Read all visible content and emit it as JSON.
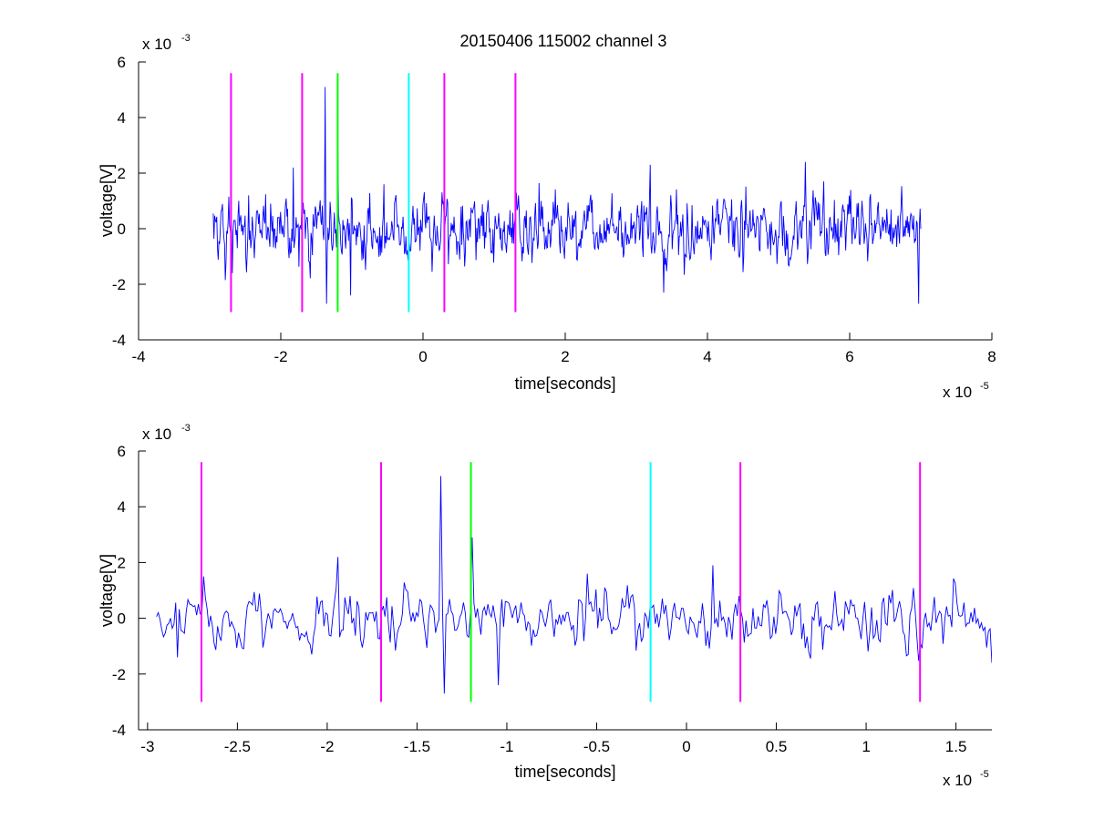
{
  "chart_data": [
    {
      "type": "line",
      "title": "20150406 115002 channel 3",
      "xlabel": "time[seconds]",
      "ylabel": "voltage[V]",
      "xlim": [
        -4e-05,
        8e-05
      ],
      "ylim": [
        -0.004,
        0.006
      ],
      "x_scale_text": "x 10",
      "x_scale_exp": "-5",
      "y_scale_text": "x 10",
      "y_scale_exp": "-3",
      "x_ticks": [
        -4e-05,
        -2e-05,
        0,
        2e-05,
        4e-05,
        6e-05,
        8e-05
      ],
      "x_tick_labels": [
        "-4",
        "-2",
        "0",
        "2",
        "4",
        "6",
        "8"
      ],
      "y_ticks": [
        -0.004,
        -0.002,
        0,
        0.002,
        0.004,
        0.006
      ],
      "y_tick_labels": [
        "-4",
        "-2",
        "0",
        "2",
        "4",
        "6"
      ],
      "grid": false,
      "series": [
        {
          "color": "#0000ff",
          "x_start": -2.95e-05,
          "x_end": 7e-05,
          "points": 1000,
          "baseline_sd": 0.0007,
          "spikes": [
            {
              "x": -2.68e-05,
              "y": -0.0016
            },
            {
              "x": -2.45e-05,
              "y": 0.0012
            },
            {
              "x": -1.82e-05,
              "y": 0.0022
            },
            {
              "x": -1.38e-05,
              "y": 0.0051
            },
            {
              "x": -1.36e-05,
              "y": -0.0027
            },
            {
              "x": -1.2e-05,
              "y": 0.0029
            },
            {
              "x": -1.02e-05,
              "y": -0.0024
            },
            {
              "x": -5.5e-06,
              "y": 0.0016
            },
            {
              "x": 3.2e-05,
              "y": 0.0023
            },
            {
              "x": 3.38e-05,
              "y": -0.0023
            },
            {
              "x": 5.38e-05,
              "y": 0.0024
            },
            {
              "x": 6.97e-05,
              "y": -0.0027
            }
          ]
        }
      ],
      "markers": [
        {
          "x": -2.7e-05,
          "color": "#ff00ff"
        },
        {
          "x": -1.7e-05,
          "color": "#ff00ff"
        },
        {
          "x": -1.2e-05,
          "color": "#00ff00"
        },
        {
          "x": -2e-06,
          "color": "#00ffff"
        },
        {
          "x": 3e-06,
          "color": "#ff00ff"
        },
        {
          "x": 1.3e-05,
          "color": "#ff00ff"
        }
      ],
      "marker_range": [
        -0.003,
        0.0056
      ]
    },
    {
      "type": "line",
      "xlabel": "time[seconds]",
      "ylabel": "voltage[V]",
      "xlim": [
        -3.05e-05,
        1.7e-05
      ],
      "ylim": [
        -0.004,
        0.006
      ],
      "x_scale_text": "x 10",
      "x_scale_exp": "-5",
      "y_scale_text": "x 10",
      "y_scale_exp": "-3",
      "x_ticks": [
        -3e-05,
        -2.5e-05,
        -2e-05,
        -1.5e-05,
        -1e-05,
        -5e-06,
        0,
        5e-06,
        1e-05,
        1.5e-05
      ],
      "x_tick_labels": [
        "-3",
        "-2.5",
        "-2",
        "-1.5",
        "-1",
        "-0.5",
        "0",
        "0.5",
        "1",
        "1.5"
      ],
      "y_ticks": [
        -0.004,
        -0.002,
        0,
        0.002,
        0.004,
        0.006
      ],
      "y_tick_labels": [
        "-4",
        "-2",
        "0",
        "2",
        "4",
        "6"
      ],
      "grid": false,
      "series": [
        {
          "color": "#0000ff",
          "x_start": -2.95e-05,
          "x_end": 1.7e-05,
          "points": 480,
          "baseline_sd": 0.0006,
          "spikes": [
            {
              "x": -2.83e-05,
              "y": -0.0014
            },
            {
              "x": -2.69e-05,
              "y": 0.0015
            },
            {
              "x": -1.94e-05,
              "y": 0.0022
            },
            {
              "x": -1.37e-05,
              "y": 0.0051
            },
            {
              "x": -1.35e-05,
              "y": -0.0027
            },
            {
              "x": -1.19e-05,
              "y": 0.0029
            },
            {
              "x": -1.05e-05,
              "y": -0.0024
            },
            {
              "x": -5.5e-06,
              "y": 0.0016
            },
            {
              "x": 1.5e-06,
              "y": 0.0019
            },
            {
              "x": 1.7e-05,
              "y": -0.0016
            }
          ]
        }
      ],
      "markers": [
        {
          "x": -2.7e-05,
          "color": "#ff00ff"
        },
        {
          "x": -1.7e-05,
          "color": "#ff00ff"
        },
        {
          "x": -1.2e-05,
          "color": "#00ff00"
        },
        {
          "x": -2e-06,
          "color": "#00ffff"
        },
        {
          "x": 3e-06,
          "color": "#ff00ff"
        },
        {
          "x": 1.3e-05,
          "color": "#ff00ff"
        }
      ],
      "marker_range": [
        -0.003,
        0.0056
      ]
    }
  ]
}
